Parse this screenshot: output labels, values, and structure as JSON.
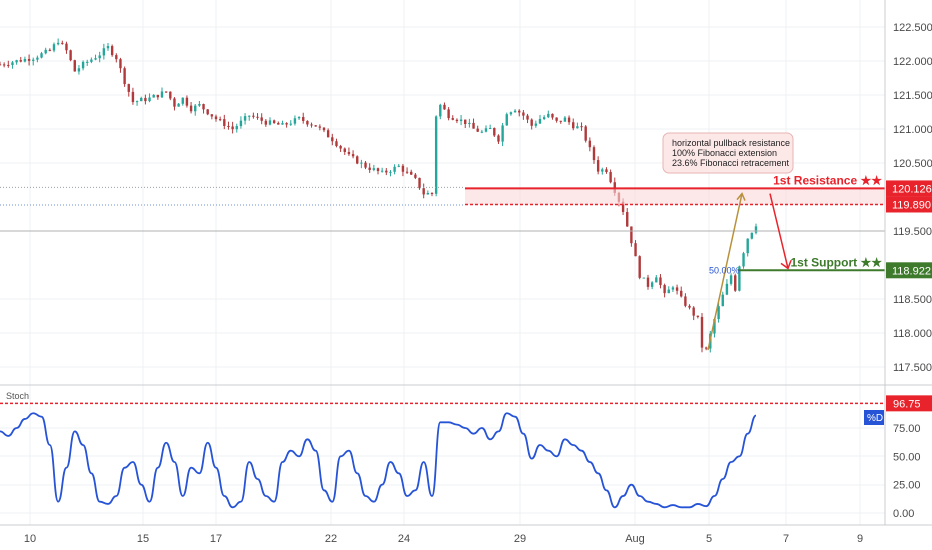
{
  "colors": {
    "up": "#26a69a",
    "down": "#b0393b",
    "resistance": "#e8232b",
    "support": "#3d7a2c",
    "stoch": "#2754d6",
    "fib": "#b8913c",
    "grid": "#eef0f3",
    "callout_bg": "#fde8e8",
    "callout_border": "#e9b3b3"
  },
  "annotations": {
    "callout_line1": "horizontal pullback resistance",
    "callout_line2": "100% Fibonacci extension",
    "callout_line3": "23.6% Fibonacci retracement",
    "resistance_label": "1st Resistance ★★",
    "support_label": "1st Support ★★",
    "fib_label": "50.00%",
    "resistance_price": "120.126",
    "resistance_price2": "119.890",
    "support_price": "118.922",
    "stoch_level": "96.75",
    "stoch_tag": "%D",
    "stoch_title": "Stoch"
  },
  "chart_data": [
    {
      "type": "candlestick",
      "x_ticks": [
        "10",
        "15",
        "17",
        "22",
        "24",
        "29",
        "Aug",
        "5",
        "7",
        "9"
      ],
      "ylim": [
        117.3,
        122.8
      ],
      "y_ticks": [
        "122.500",
        "122.000",
        "121.500",
        "121.000",
        "120.500",
        "119.500",
        "118.500",
        "118.000",
        "117.500"
      ],
      "levels": {
        "resistance": 120.126,
        "resistance2": 119.89,
        "support": 118.922,
        "last": 119.5
      },
      "close_path": [
        [
          0,
          121.95
        ],
        [
          2,
          122.0
        ],
        [
          4,
          122.05
        ],
        [
          6,
          122.15
        ],
        [
          7,
          122.3
        ],
        [
          8,
          122.15
        ],
        [
          9,
          121.85
        ],
        [
          10,
          121.95
        ],
        [
          12,
          122.1
        ],
        [
          13,
          122.2
        ],
        [
          14,
          122.05
        ],
        [
          15,
          121.7
        ],
        [
          16,
          121.4
        ],
        [
          18,
          121.45
        ],
        [
          20,
          121.55
        ],
        [
          21,
          121.35
        ],
        [
          22,
          121.45
        ],
        [
          23,
          121.3
        ],
        [
          24,
          121.35
        ],
        [
          26,
          121.15
        ],
        [
          28,
          121.0
        ],
        [
          30,
          121.2
        ],
        [
          32,
          121.1
        ],
        [
          34,
          121.05
        ],
        [
          36,
          121.15
        ],
        [
          38,
          121.05
        ],
        [
          40,
          120.85
        ],
        [
          42,
          120.6
        ],
        [
          44,
          120.45
        ],
        [
          46,
          120.35
        ],
        [
          48,
          120.45
        ],
        [
          50,
          120.25
        ],
        [
          51,
          120.05
        ],
        [
          52,
          120.05
        ],
        [
          52.5,
          121.2
        ],
        [
          53,
          121.35
        ],
        [
          54,
          121.2
        ],
        [
          55,
          121.15
        ],
        [
          56,
          121.1
        ],
        [
          57,
          121.0
        ],
        [
          58,
          120.95
        ],
        [
          59,
          121.0
        ],
        [
          60,
          120.85
        ],
        [
          61,
          121.25
        ],
        [
          62,
          121.3
        ],
        [
          63,
          121.2
        ],
        [
          64,
          121.05
        ],
        [
          65,
          121.15
        ],
        [
          66,
          121.2
        ],
        [
          67,
          121.1
        ],
        [
          68,
          121.15
        ],
        [
          69,
          121.05
        ],
        [
          70,
          121.0
        ],
        [
          71,
          120.7
        ],
        [
          72,
          120.4
        ],
        [
          73,
          120.4
        ],
        [
          74,
          120.1
        ],
        [
          75,
          119.8
        ],
        [
          76,
          119.35
        ],
        [
          77,
          118.85
        ],
        [
          78,
          118.7
        ],
        [
          79,
          118.85
        ],
        [
          80,
          118.55
        ],
        [
          81,
          118.7
        ],
        [
          82,
          118.5
        ],
        [
          83,
          118.35
        ],
        [
          84,
          118.2
        ],
        [
          84.5,
          117.8
        ],
        [
          85,
          117.75
        ],
        [
          86,
          118.2
        ],
        [
          87,
          118.55
        ],
        [
          88,
          118.85
        ],
        [
          88.5,
          118.65
        ],
        [
          89,
          119.0
        ],
        [
          90,
          119.4
        ],
        [
          91,
          119.6
        ]
      ]
    },
    {
      "type": "line",
      "title": "Stoch",
      "ylim": [
        -10,
        100
      ],
      "y_ticks": [
        "75.00",
        "50.00",
        "25.00",
        "0.00"
      ],
      "overbought": 96.75,
      "series": [
        {
          "values": [
            [
              0,
              72
            ],
            [
              1,
              68
            ],
            [
              2,
              75
            ],
            [
              3,
              83
            ],
            [
              4,
              88
            ],
            [
              5,
              85
            ],
            [
              6,
              60
            ],
            [
              7,
              10
            ],
            [
              8,
              40
            ],
            [
              9,
              72
            ],
            [
              10,
              60
            ],
            [
              11,
              35
            ],
            [
              12,
              10
            ],
            [
              13,
              8
            ],
            [
              14,
              15
            ],
            [
              15,
              40
            ],
            [
              16,
              45
            ],
            [
              17,
              25
            ],
            [
              18,
              10
            ],
            [
              19,
              40
            ],
            [
              20,
              62
            ],
            [
              21,
              45
            ],
            [
              22,
              15
            ],
            [
              23,
              40
            ],
            [
              24,
              35
            ],
            [
              25,
              62
            ],
            [
              26,
              40
            ],
            [
              27,
              15
            ],
            [
              28,
              5
            ],
            [
              29,
              10
            ],
            [
              30,
              45
            ],
            [
              31,
              30
            ],
            [
              32,
              15
            ],
            [
              33,
              10
            ],
            [
              34,
              45
            ],
            [
              35,
              55
            ],
            [
              36,
              50
            ],
            [
              37,
              65
            ],
            [
              38,
              55
            ],
            [
              39,
              20
            ],
            [
              40,
              10
            ],
            [
              41,
              50
            ],
            [
              42,
              55
            ],
            [
              43,
              35
            ],
            [
              44,
              15
            ],
            [
              45,
              10
            ],
            [
              46,
              25
            ],
            [
              47,
              45
            ],
            [
              48,
              35
            ],
            [
              49,
              15
            ],
            [
              50,
              20
            ],
            [
              51,
              45
            ],
            [
              52,
              15
            ],
            [
              53,
              80
            ],
            [
              54,
              80
            ],
            [
              55,
              78
            ],
            [
              56,
              75
            ],
            [
              57,
              70
            ],
            [
              58,
              75
            ],
            [
              59,
              65
            ],
            [
              60,
              72
            ],
            [
              61,
              88
            ],
            [
              62,
              85
            ],
            [
              63,
              70
            ],
            [
              64,
              48
            ],
            [
              65,
              60
            ],
            [
              66,
              55
            ],
            [
              67,
              50
            ],
            [
              68,
              65
            ],
            [
              69,
              60
            ],
            [
              70,
              55
            ],
            [
              71,
              45
            ],
            [
              72,
              35
            ],
            [
              73,
              20
            ],
            [
              74,
              5
            ],
            [
              75,
              15
            ],
            [
              76,
              25
            ],
            [
              77,
              15
            ],
            [
              78,
              10
            ],
            [
              79,
              8
            ],
            [
              80,
              5
            ],
            [
              81,
              7
            ],
            [
              82,
              5
            ],
            [
              83,
              5
            ],
            [
              84,
              8
            ],
            [
              85,
              6
            ],
            [
              86,
              15
            ],
            [
              87,
              30
            ],
            [
              88,
              45
            ],
            [
              89,
              50
            ],
            [
              90,
              70
            ],
            [
              91,
              86
            ]
          ]
        }
      ]
    }
  ]
}
